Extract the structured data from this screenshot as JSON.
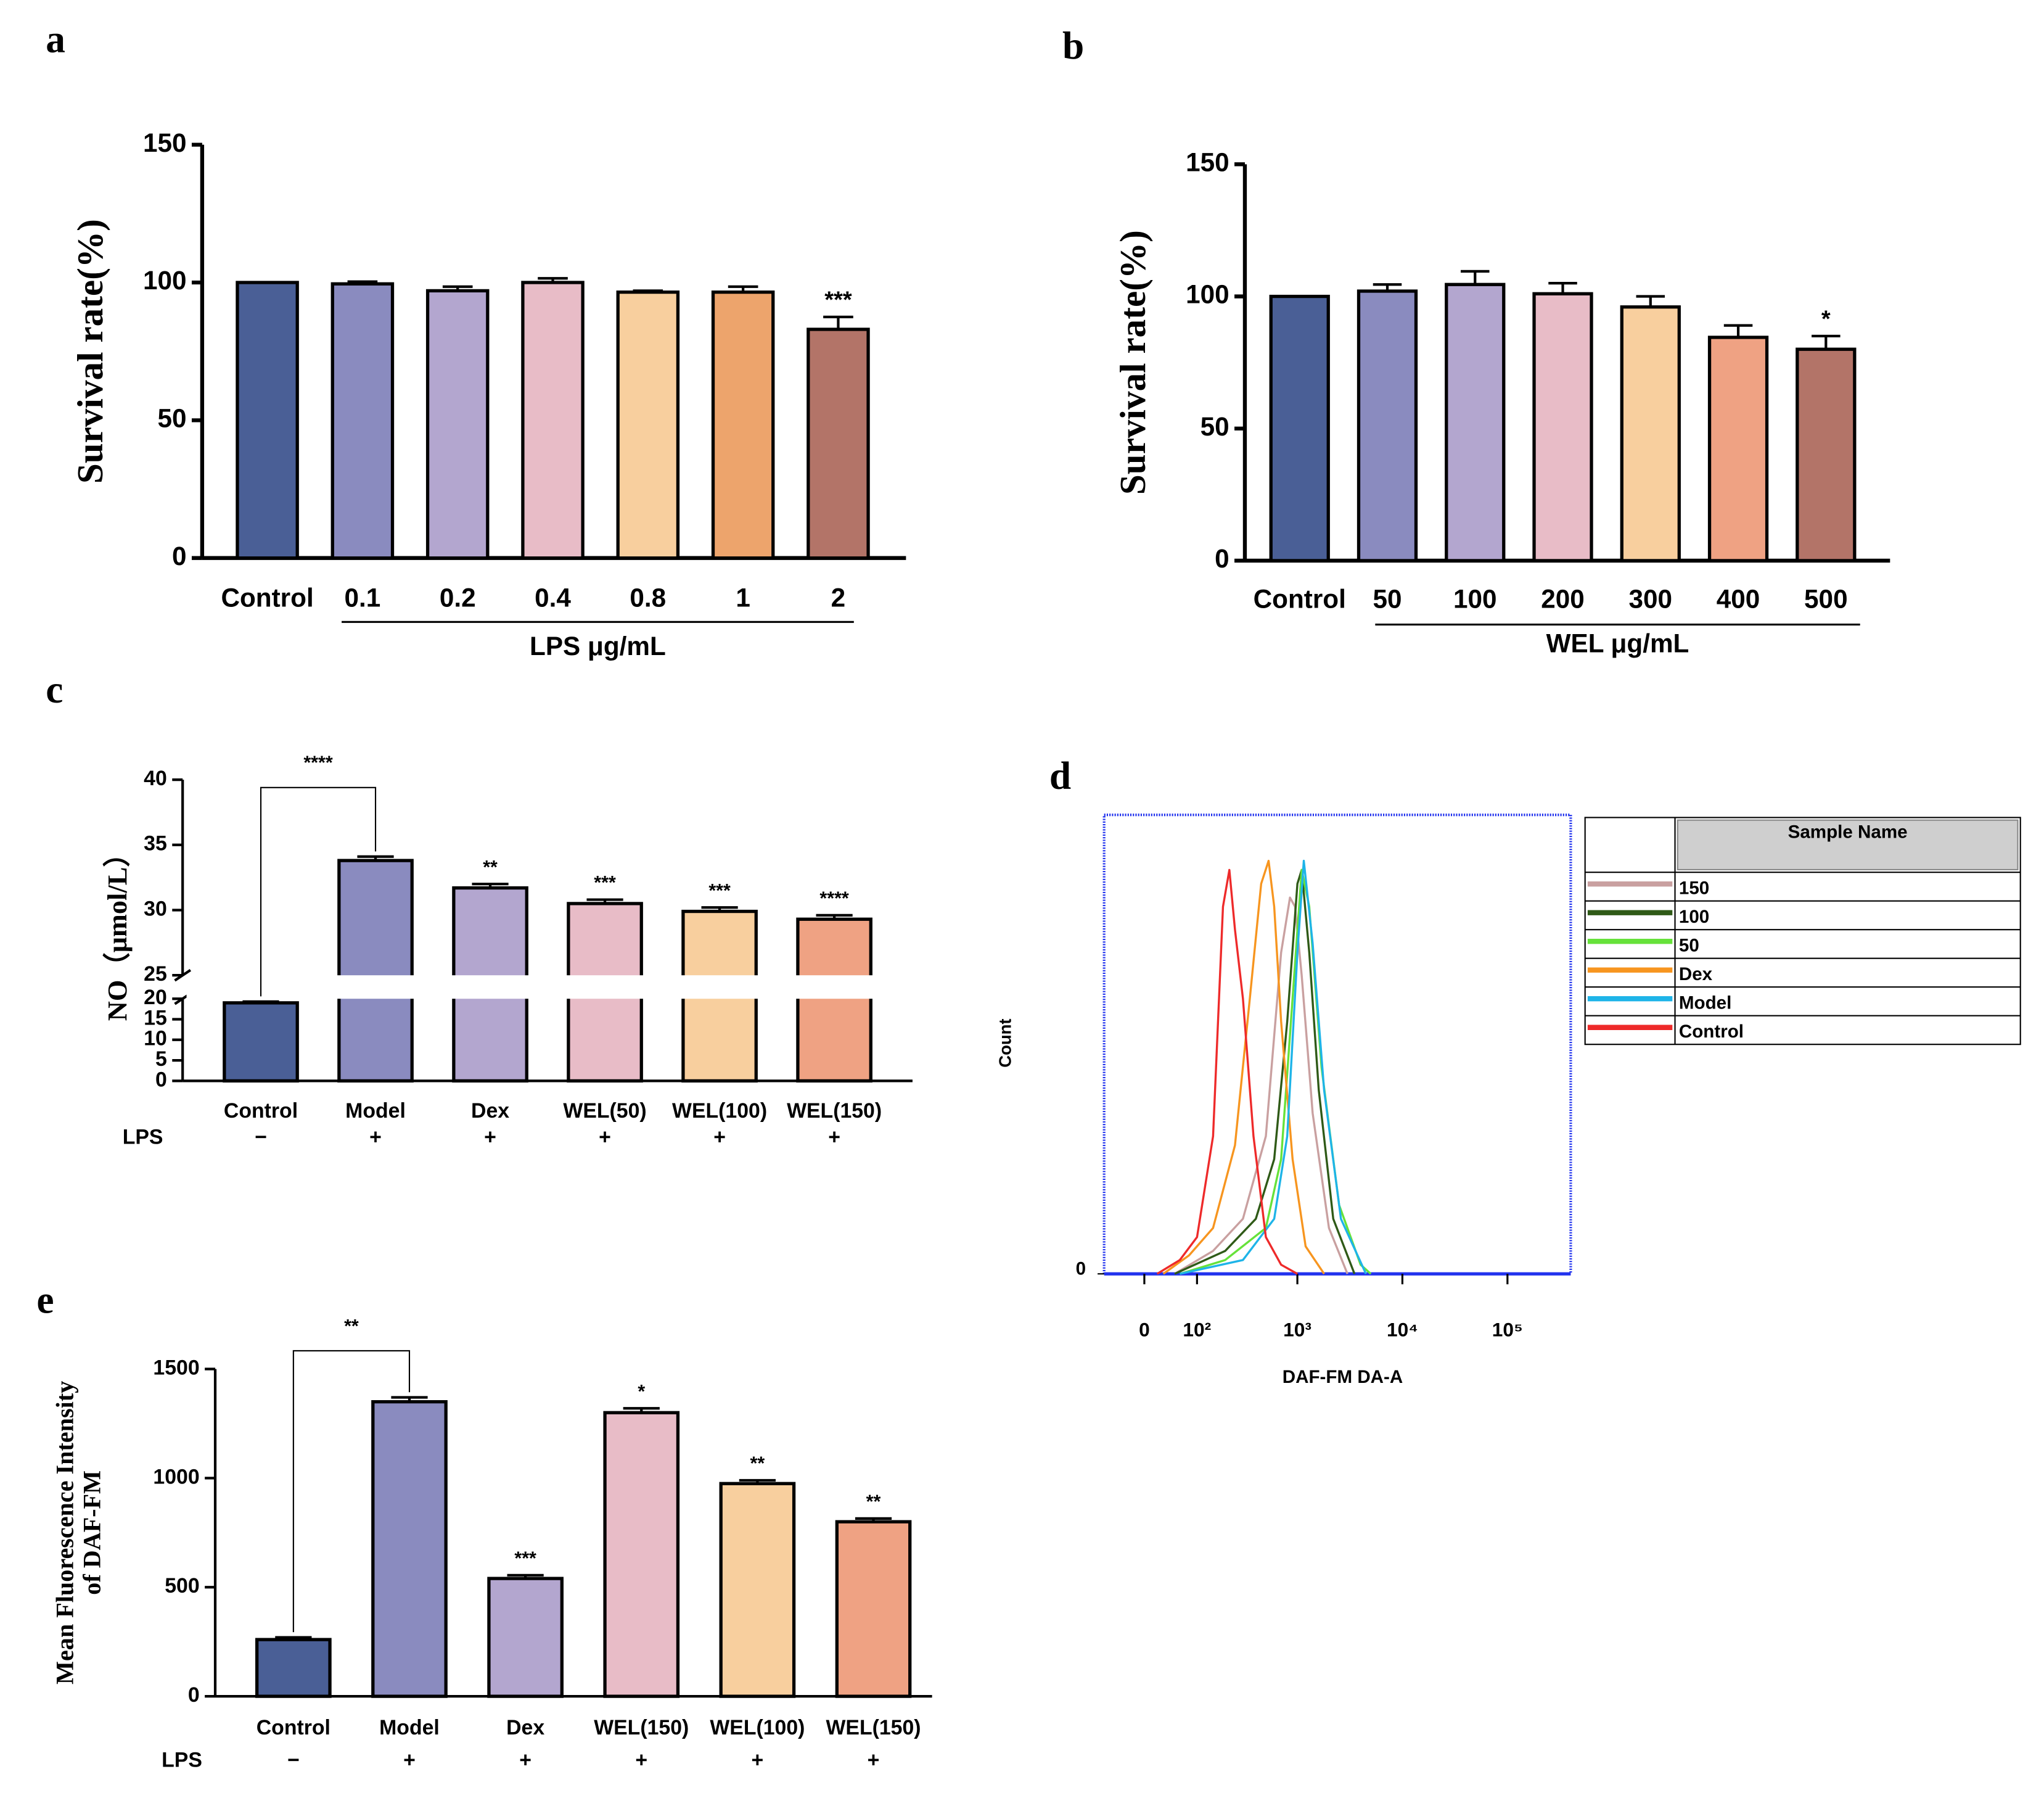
{
  "chart_data": [
    {
      "type": "bar",
      "panel": "a",
      "ylabel": [
        "Survival rate(%)"
      ],
      "categories": [
        "Control",
        "0.1",
        "0.2",
        "0.4",
        "0.8",
        "1",
        "2"
      ],
      "group_label": "LPS μg/mL",
      "values": [
        100,
        99.5,
        97,
        100,
        96.5,
        96.5,
        83
      ],
      "errors": [
        0,
        0.8,
        1.5,
        1.5,
        0.5,
        2,
        4.5
      ],
      "annotations": [
        null,
        null,
        null,
        null,
        null,
        null,
        "***"
      ],
      "colors": [
        "#4a5f96",
        "#8a8bbf",
        "#b3a6cf",
        "#e8bcc7",
        "#f8cf9e",
        "#eda46c",
        "#b37468"
      ],
      "ylim": [
        0,
        150
      ],
      "yticks": [
        0,
        50,
        100,
        150
      ]
    },
    {
      "type": "bar",
      "panel": "b",
      "ylabel": [
        "Survival rate(%)"
      ],
      "categories": [
        "Control",
        "50",
        "100",
        "200",
        "300",
        "400",
        "500"
      ],
      "group_label": "WEL μg/mL",
      "values": [
        100,
        102,
        104.5,
        101,
        96,
        84.5,
        80
      ],
      "errors": [
        0,
        2.5,
        5,
        4,
        4,
        4.5,
        5
      ],
      "annotations": [
        null,
        null,
        null,
        null,
        null,
        null,
        "*"
      ],
      "colors": [
        "#4a5f96",
        "#8a8bbf",
        "#b3a6cf",
        "#e8bcc7",
        "#f8cf9e",
        "#efa283",
        "#b37468"
      ],
      "ylim": [
        0,
        150
      ],
      "yticks": [
        0,
        50,
        100,
        150
      ]
    },
    {
      "type": "bar",
      "panel": "c",
      "ylabel": [
        "NO（μmol/L）"
      ],
      "categories": [
        "Control",
        "Model",
        "Dex",
        "WEL(50)",
        "WEL(100)",
        "WEL(150)"
      ],
      "row_label": "LPS",
      "row": [
        "−",
        "+",
        "+",
        "+",
        "+",
        "+"
      ],
      "values": [
        19,
        33.8,
        31.7,
        30.5,
        29.9,
        29.3
      ],
      "errors": [
        0.3,
        0.3,
        0.3,
        0.3,
        0.3,
        0.3
      ],
      "annotations": [
        null,
        null,
        "**",
        "***",
        "***",
        "****"
      ],
      "bracket": "****",
      "colors": [
        "#4a5f96",
        "#8a8bbf",
        "#b3a6cf",
        "#e8bcc7",
        "#f8cf9e",
        "#efa283"
      ],
      "ylim": [
        0,
        40
      ],
      "ybreak": [
        20,
        25
      ],
      "yticks": [
        0,
        5,
        10,
        15,
        20,
        25,
        30,
        35,
        40
      ]
    },
    {
      "type": "line",
      "panel": "d",
      "xlabel": "DAF-FM DA-A",
      "ylabel": "Count",
      "legend_title": "Sample Name",
      "xscale": "biexponential",
      "xlim": [
        -70,
        400000
      ],
      "xticks": [
        0,
        {
          "value": 100,
          "label": "10²"
        },
        {
          "value": 1000,
          "label": "10³"
        },
        {
          "value": 10000,
          "label": "10⁴"
        },
        {
          "value": 100000,
          "label": "10⁵"
        }
      ],
      "ylim": [
        0,
        100
      ],
      "yticks": [
        0
      ],
      "series": [
        {
          "name": "150",
          "color": "#c9a0a0",
          "x": [
            50,
            150,
            300,
            500,
            700,
            850,
            950,
            1100,
            1400,
            2000,
            3000
          ],
          "values": [
            0,
            5,
            12,
            30,
            70,
            82,
            80,
            65,
            35,
            10,
            0
          ]
        },
        {
          "name": "100",
          "color": "#2f5a17",
          "x": [
            50,
            200,
            400,
            600,
            800,
            1000,
            1100,
            1300,
            1600,
            2200,
            3500
          ],
          "values": [
            0,
            5,
            12,
            25,
            55,
            85,
            88,
            70,
            40,
            12,
            0
          ]
        },
        {
          "name": "50",
          "color": "#66e23a",
          "x": [
            60,
            200,
            500,
            700,
            900,
            1100,
            1300,
            1700,
            2500,
            4000,
            5000
          ],
          "values": [
            0,
            3,
            10,
            25,
            60,
            88,
            80,
            45,
            15,
            2,
            0
          ]
        },
        {
          "name": "Dex",
          "color": "#f7951f",
          "x": [
            30,
            80,
            150,
            250,
            350,
            450,
            530,
            600,
            700,
            900,
            1200,
            1800
          ],
          "values": [
            0,
            4,
            10,
            28,
            60,
            85,
            90,
            80,
            55,
            25,
            6,
            0
          ]
        },
        {
          "name": "Model",
          "color": "#1eb4e8",
          "x": [
            60,
            300,
            600,
            800,
            1000,
            1150,
            1400,
            1800,
            2600,
            4500
          ],
          "values": [
            0,
            3,
            12,
            30,
            70,
            90,
            72,
            40,
            12,
            0
          ]
        },
        {
          "name": "Control",
          "color": "#ee2a2a",
          "x": [
            20,
            60,
            100,
            150,
            190,
            220,
            250,
            300,
            380,
            500,
            700,
            1000
          ],
          "values": [
            0,
            3,
            8,
            30,
            80,
            88,
            75,
            60,
            30,
            8,
            2,
            0
          ]
        }
      ]
    },
    {
      "type": "bar",
      "panel": "e",
      "ylabel": [
        "Mean Fluorescence Intensity",
        "of DAF-FM"
      ],
      "categories": [
        "Control",
        "Model",
        "Dex",
        "WEL(150)",
        "WEL(100)",
        "WEL(150)"
      ],
      "row_label": "LPS",
      "row": [
        "−",
        "+",
        "+",
        "+",
        "+",
        "+"
      ],
      "values": [
        260,
        1350,
        540,
        1300,
        975,
        800
      ],
      "errors": [
        10,
        20,
        15,
        20,
        15,
        15
      ],
      "annotations": [
        null,
        null,
        "***",
        "*",
        "**",
        "**"
      ],
      "bracket": "**",
      "colors": [
        "#4a5f96",
        "#8a8bbf",
        "#b3a6cf",
        "#e8bcc7",
        "#f8cf9e",
        "#efa283"
      ],
      "ylim": [
        0,
        1500
      ],
      "yticks": [
        0,
        500,
        1000,
        1500
      ]
    }
  ]
}
